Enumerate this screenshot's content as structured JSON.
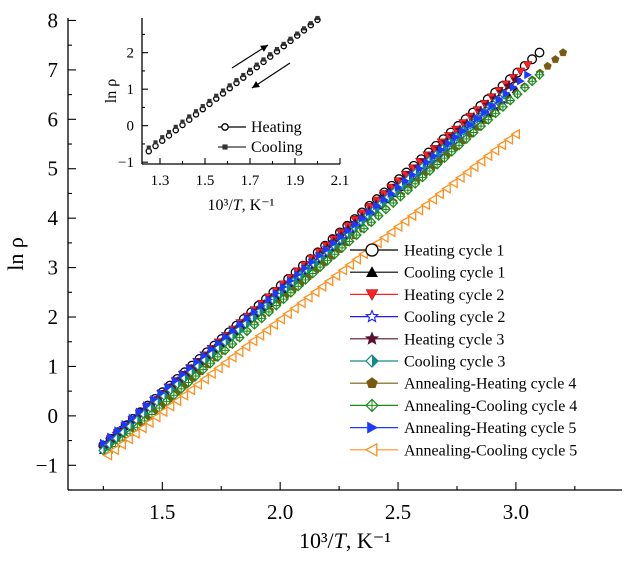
{
  "chart_data": [
    {
      "type": "scatter",
      "xlabel": "10³/T, K⁻¹",
      "ylabel": "ln ρ",
      "xlim": [
        1.1,
        3.45
      ],
      "ylim": [
        -1.5,
        8.05
      ],
      "xticks": [
        1.5,
        2.0,
        2.5,
        3.0
      ],
      "yticks": [
        -1,
        0,
        1,
        2,
        3,
        4,
        5,
        6,
        7,
        8
      ],
      "legend_position": "center-right",
      "series": [
        {
          "name": "Heating cycle 1",
          "marker": "circle-open",
          "color": "#000000",
          "x_start": 1.25,
          "x_end": 3.1,
          "y_start": -0.6,
          "y_end": 7.35
        },
        {
          "name": "Cooling cycle 1",
          "marker": "triangle-up-filled",
          "color": "#000000",
          "x_start": 1.25,
          "x_end": 3.0,
          "y_start": -0.7,
          "y_end": 6.6
        },
        {
          "name": "Heating cycle 2",
          "marker": "triangle-down-filled",
          "color": "#ff2020",
          "x_start": 1.25,
          "x_end": 3.05,
          "y_start": -0.6,
          "y_end": 7.1
        },
        {
          "name": "Cooling cycle 2",
          "marker": "star-open",
          "color": "#1a1aff",
          "x_start": 1.25,
          "x_end": 2.95,
          "y_start": -0.6,
          "y_end": 6.4
        },
        {
          "name": "Heating cycle 3",
          "marker": "star-filled",
          "color": "#5a1030",
          "x_start": 1.25,
          "x_end": 3.0,
          "y_start": -0.65,
          "y_end": 6.8
        },
        {
          "name": "Cooling cycle 3",
          "marker": "diamond-half",
          "color": "#138a8a",
          "x_start": 1.25,
          "x_end": 2.95,
          "y_start": -0.7,
          "y_end": 6.5
        },
        {
          "name": "Annealing-Heating cycle 4",
          "marker": "pentagon-filled",
          "color": "#7a5a10",
          "x_start": 1.27,
          "x_end": 3.2,
          "y_start": -0.75,
          "y_end": 7.35
        },
        {
          "name": "Annealing-Cooling cycle 4",
          "marker": "diamond-cross",
          "color": "#1b8a1b",
          "x_start": 1.27,
          "x_end": 3.1,
          "y_start": -0.75,
          "y_end": 6.9
        },
        {
          "name": "Annealing-Heating cycle 5",
          "marker": "triangle-right-filled",
          "color": "#1a3aff",
          "x_start": 1.25,
          "x_end": 3.05,
          "y_start": -0.55,
          "y_end": 6.9
        },
        {
          "name": "Annealing-Cooling cycle 5",
          "marker": "triangle-left-open",
          "color": "#ff9020",
          "x_start": 1.27,
          "x_end": 3.0,
          "y_start": -0.8,
          "y_end": 5.7
        }
      ]
    },
    {
      "type": "scatter",
      "xlabel": "10³/T, K⁻¹",
      "ylabel": "ln ρ",
      "xlim": [
        1.22,
        2.1
      ],
      "ylim": [
        -1.05,
        2.95
      ],
      "xticks": [
        1.3,
        1.5,
        1.7,
        1.9,
        2.1
      ],
      "yticks": [
        -1,
        0,
        1,
        2
      ],
      "legend_position": "bottom-right",
      "series": [
        {
          "name": "Heating",
          "marker": "circle-open",
          "color": "#000000",
          "x_start": 1.25,
          "x_end": 2.0,
          "y_start": -0.7,
          "y_end": 2.9
        },
        {
          "name": "Cooling",
          "marker": "square-filled",
          "color": "#333333",
          "x_start": 1.25,
          "x_end": 2.0,
          "y_start": -0.6,
          "y_end": 2.95
        }
      ]
    }
  ]
}
